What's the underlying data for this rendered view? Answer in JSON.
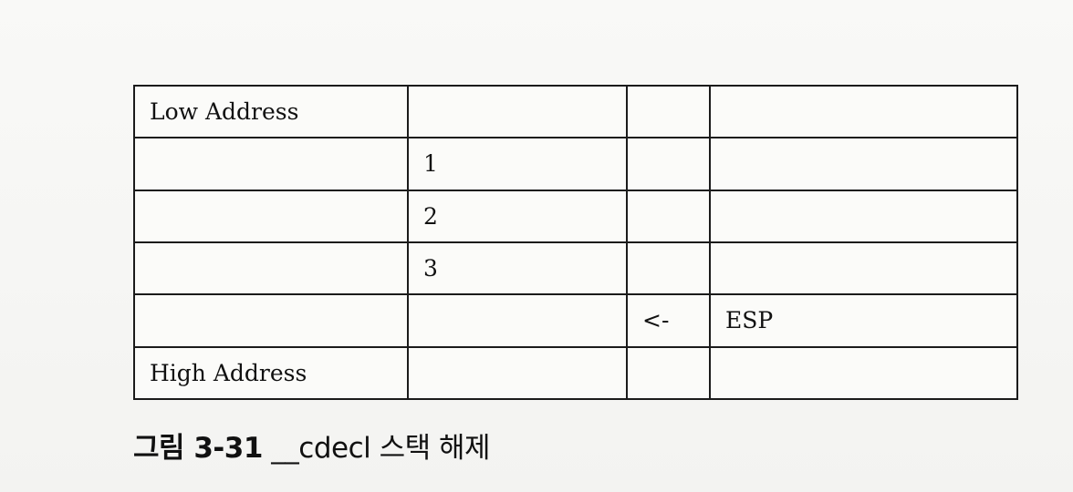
{
  "table": {
    "rows": [
      {
        "c1": "Low Address",
        "c2": "",
        "c3": "",
        "c4": ""
      },
      {
        "c1": "",
        "c2": "1",
        "c3": "",
        "c4": ""
      },
      {
        "c1": "",
        "c2": "2",
        "c3": "",
        "c4": ""
      },
      {
        "c1": "",
        "c2": "3",
        "c3": "",
        "c4": ""
      },
      {
        "c1": "",
        "c2": "",
        "c3": "<-",
        "c4": "ESP"
      },
      {
        "c1": "High Address",
        "c2": "",
        "c3": "",
        "c4": ""
      }
    ]
  },
  "caption": {
    "label": "그림 3-31",
    "text": "__cdecl 스택 해제"
  }
}
